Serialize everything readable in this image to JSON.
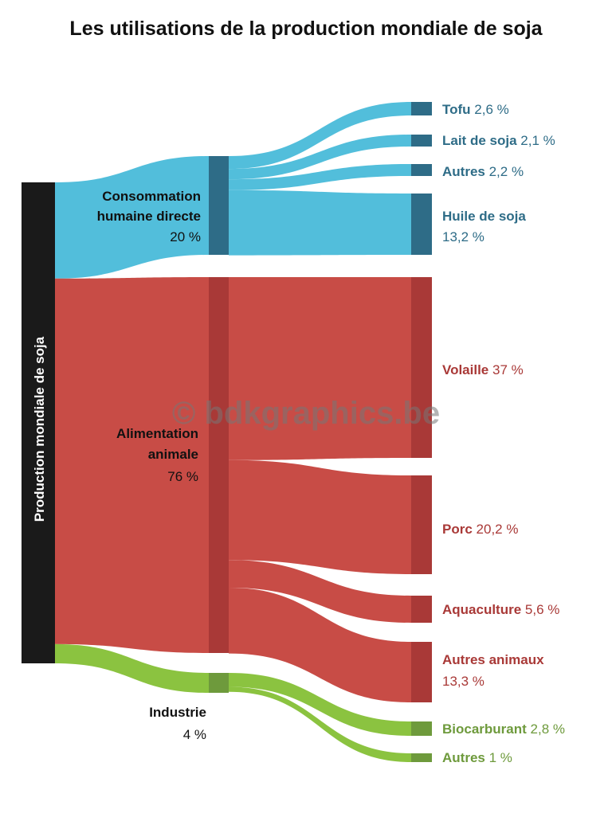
{
  "title": "Les utilisations de la production mondiale de soja",
  "watermark": "© bdkgraphics.be",
  "colors": {
    "human": "#52bedb",
    "human_dark": "#2e6c87",
    "animal": "#c84c46",
    "animal_dark": "#a93937",
    "industry": "#8bc340",
    "industry_dark": "#6e9a3c",
    "source": "#1a1a1a"
  },
  "source": {
    "label": "Production mondiale de soja"
  },
  "groups": [
    {
      "key": "human",
      "name_lines": [
        "Consommation",
        "humaine directe"
      ],
      "value_text": "20 %",
      "value": 20
    },
    {
      "key": "animal",
      "name_lines": [
        "Alimentation",
        "animale"
      ],
      "value_text": "76 %",
      "value": 76
    },
    {
      "key": "industry",
      "name_lines": [
        "Industrie"
      ],
      "value_text": "4 %",
      "value": 4
    }
  ],
  "targets": [
    {
      "group": "human",
      "name": "Tofu",
      "value_text": "2,6 %",
      "value": 2.6
    },
    {
      "group": "human",
      "name": "Lait de soja",
      "value_text": "2,1 %",
      "value": 2.1
    },
    {
      "group": "human",
      "name": "Autres",
      "value_text": "2,2 %",
      "value": 2.2
    },
    {
      "group": "human",
      "name": "Huile de soja",
      "value_text": "13,2 %",
      "value": 13.2
    },
    {
      "group": "animal",
      "name": "Volaille",
      "value_text": "37 %",
      "value": 37
    },
    {
      "group": "animal",
      "name": "Porc",
      "value_text": "20,2 %",
      "value": 20.2
    },
    {
      "group": "animal",
      "name": "Aquaculture",
      "value_text": "5,6 %",
      "value": 5.6
    },
    {
      "group": "animal",
      "name": "Autres animaux",
      "value_text": "13,3 %",
      "value": 13.3
    },
    {
      "group": "industry",
      "name": "Biocarburant",
      "value_text": "2,8 %",
      "value": 2.8
    },
    {
      "group": "industry",
      "name": "Autres",
      "value_text": "1 %",
      "value": 1
    }
  ]
}
